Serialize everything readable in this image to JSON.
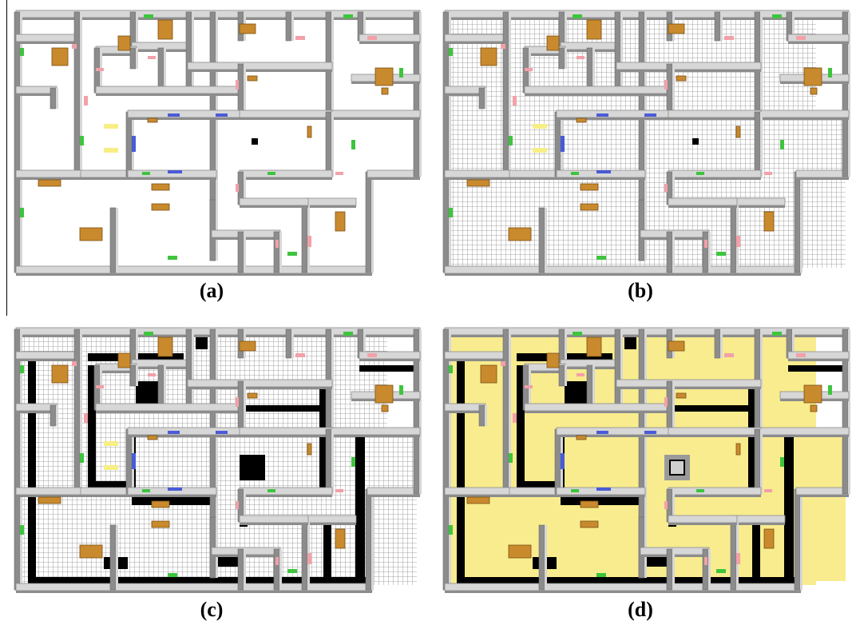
{
  "figure": {
    "panels": [
      {
        "id": "a",
        "label": "(a)",
        "floor": "plain"
      },
      {
        "id": "b",
        "label": "(b)",
        "floor": "grid"
      },
      {
        "id": "c",
        "label": "(c)",
        "floor": "grid-obstacles"
      },
      {
        "id": "d",
        "label": "(d)",
        "floor": "yellow-explored"
      }
    ],
    "colors": {
      "wall_top": "#d7d7d7",
      "wall_side": "#8c8c8c",
      "grid_line": "#9a9a9a",
      "furniture": "#c98a2e",
      "green_marker": "#3ec43e",
      "pink_marker": "#f3a0a8",
      "blue_marker": "#4a5bd6",
      "yellow_marker": "#f7ee86",
      "explored": "#f8ec8e",
      "obstacle": "#000000"
    }
  }
}
